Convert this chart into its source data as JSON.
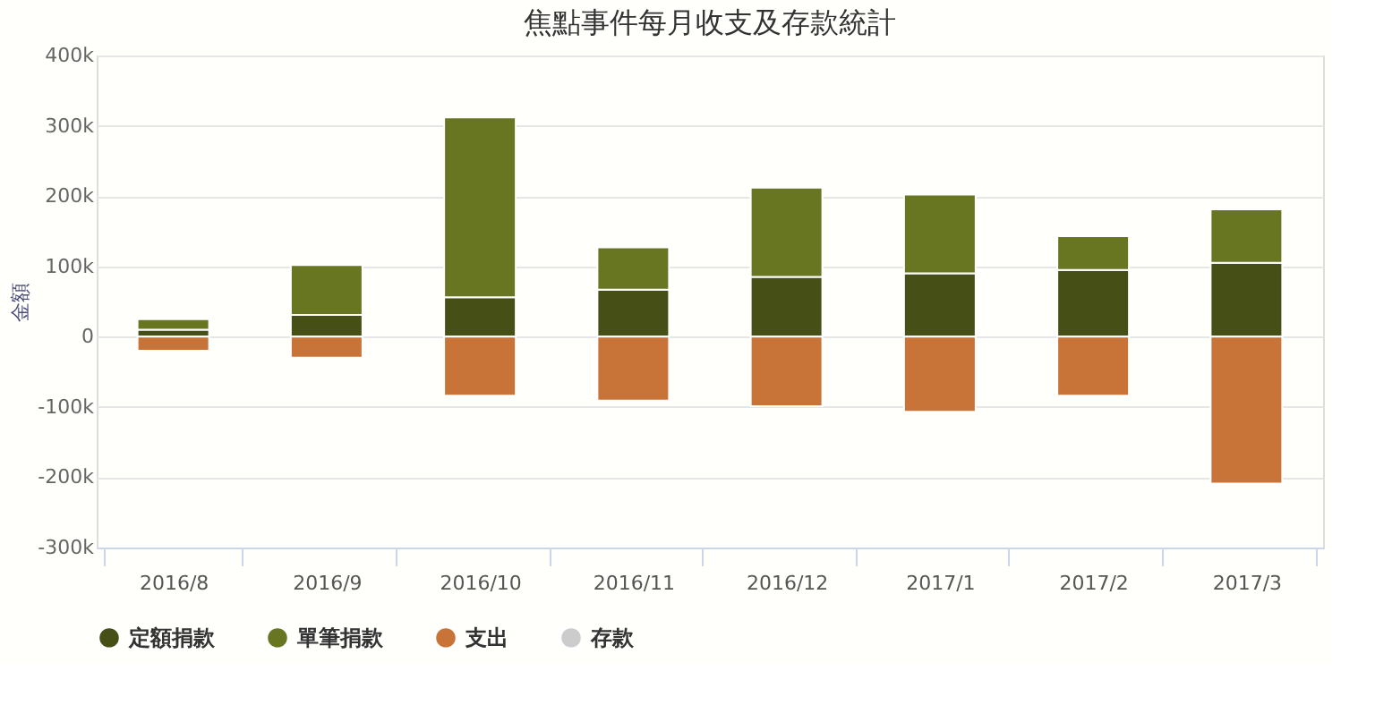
{
  "chart_data": {
    "type": "bar",
    "title": "焦點事件每月收支及存款統計",
    "ylabel": "金額",
    "stacked": true,
    "grid": "y",
    "legend": "bottom",
    "categories": [
      "2016/8",
      "2016/9",
      "2016/10",
      "2016/11",
      "2016/12",
      "2017/1",
      "2017/2",
      "2017/3"
    ],
    "series": [
      {
        "name": "定額捐款",
        "color": "#465016",
        "values": [
          10000,
          31000,
          56000,
          67000,
          85000,
          90000,
          95000,
          105000
        ]
      },
      {
        "name": "單筆捐款",
        "color": "#687622",
        "values": [
          15000,
          71000,
          256000,
          60000,
          127000,
          112000,
          48000,
          76000
        ]
      },
      {
        "name": "支出",
        "color": "#c87337",
        "values": [
          -20000,
          -30000,
          -84000,
          -91000,
          -99000,
          -107000,
          -84000,
          -209000
        ]
      },
      {
        "name": "存款",
        "color": "#cccccc",
        "values": [
          null,
          null,
          null,
          null,
          null,
          null,
          null,
          null
        ]
      }
    ],
    "ylim": [
      -300000,
      400000
    ],
    "yticks": [
      {
        "value": -300000,
        "label": "-300k"
      },
      {
        "value": -200000,
        "label": "-200k"
      },
      {
        "value": -100000,
        "label": "-100k"
      },
      0,
      {
        "value": 100000,
        "label": "100k"
      },
      {
        "value": 200000,
        "label": "200k"
      },
      {
        "value": 300000,
        "label": "300k"
      },
      {
        "value": 400000,
        "label": "400k"
      }
    ]
  }
}
